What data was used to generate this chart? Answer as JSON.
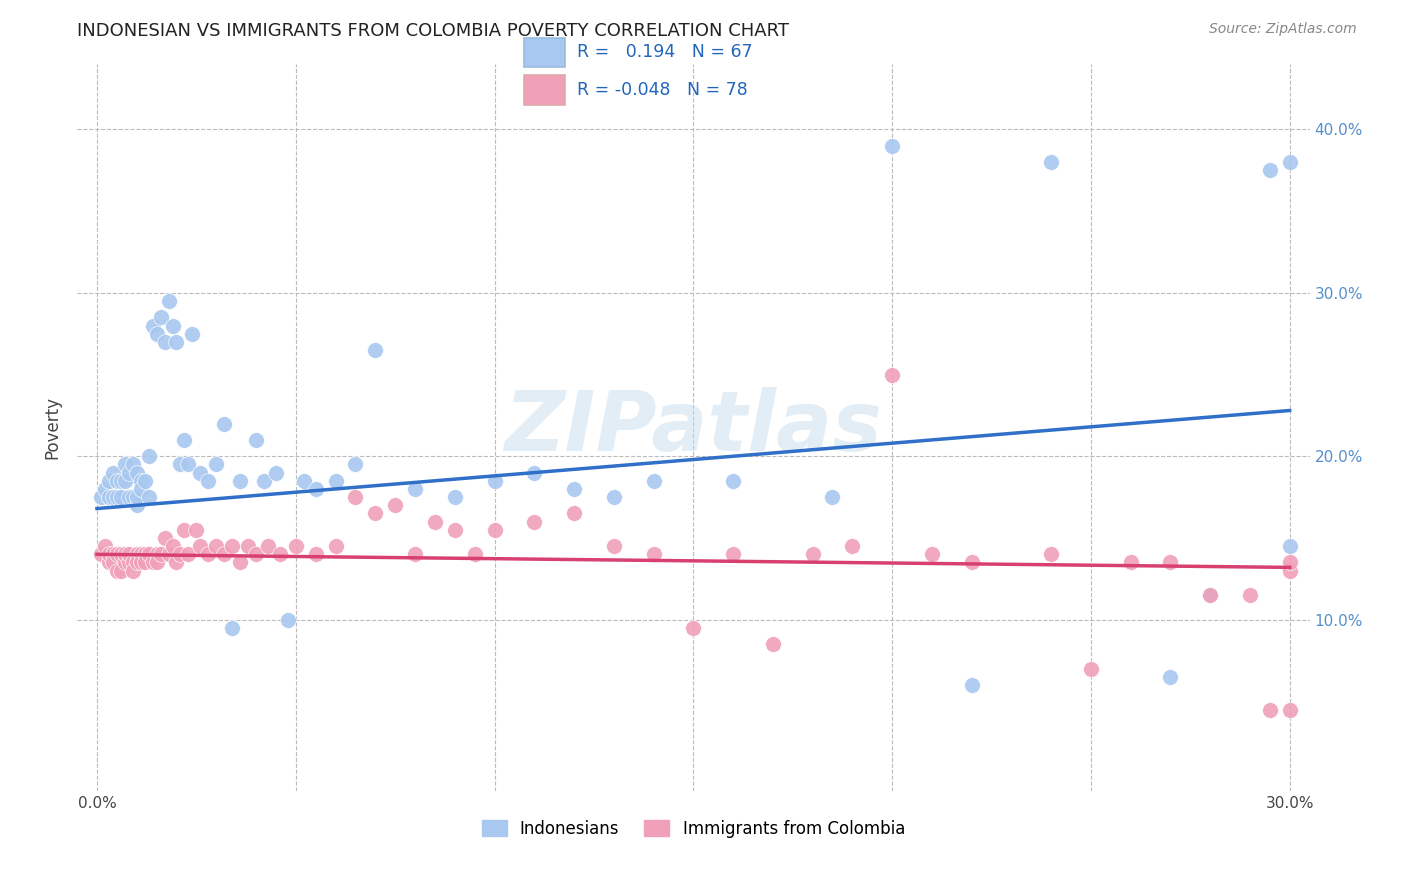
{
  "title": "INDONESIAN VS IMMIGRANTS FROM COLOMBIA POVERTY CORRELATION CHART",
  "source": "Source: ZipAtlas.com",
  "ylabel": "Poverty",
  "xlim": [
    -0.005,
    0.305
  ],
  "ylim": [
    -0.005,
    0.44
  ],
  "xtick_positions": [
    0.0,
    0.05,
    0.1,
    0.15,
    0.2,
    0.25,
    0.3
  ],
  "ytick_positions": [
    0.1,
    0.2,
    0.3,
    0.4
  ],
  "xticklabels": [
    "0.0%",
    "",
    "",
    "",
    "",
    "",
    "30.0%"
  ],
  "yticklabels": [
    "10.0%",
    "20.0%",
    "30.0%",
    "40.0%"
  ],
  "legend_labels": [
    "Indonesians",
    "Immigrants from Colombia"
  ],
  "blue_R": "0.194",
  "blue_N": "67",
  "pink_R": "-0.048",
  "pink_N": "78",
  "blue_color": "#A8C8F0",
  "pink_color": "#F0A0B8",
  "blue_line_color": "#3070C8",
  "pink_line_color": "#D84070",
  "watermark": "ZIPatlas",
  "background_color": "#FFFFFF",
  "blue_trend_x": [
    0.0,
    0.3
  ],
  "blue_trend_y": [
    0.168,
    0.228
  ],
  "pink_trend_x": [
    0.0,
    0.3
  ],
  "pink_trend_y": [
    0.14,
    0.132
  ],
  "blue_x": [
    0.001,
    0.002,
    0.003,
    0.003,
    0.004,
    0.004,
    0.005,
    0.005,
    0.006,
    0.006,
    0.007,
    0.007,
    0.008,
    0.008,
    0.009,
    0.009,
    0.01,
    0.01,
    0.01,
    0.011,
    0.011,
    0.012,
    0.013,
    0.013,
    0.014,
    0.015,
    0.016,
    0.017,
    0.018,
    0.019,
    0.02,
    0.021,
    0.022,
    0.023,
    0.024,
    0.026,
    0.028,
    0.03,
    0.032,
    0.034,
    0.036,
    0.04,
    0.042,
    0.045,
    0.048,
    0.052,
    0.055,
    0.06,
    0.065,
    0.07,
    0.08,
    0.09,
    0.1,
    0.11,
    0.12,
    0.13,
    0.14,
    0.16,
    0.185,
    0.2,
    0.22,
    0.24,
    0.27,
    0.28,
    0.295,
    0.3,
    0.3
  ],
  "blue_y": [
    0.175,
    0.18,
    0.185,
    0.175,
    0.19,
    0.175,
    0.185,
    0.175,
    0.185,
    0.175,
    0.195,
    0.185,
    0.175,
    0.19,
    0.175,
    0.195,
    0.17,
    0.175,
    0.19,
    0.185,
    0.18,
    0.185,
    0.175,
    0.2,
    0.28,
    0.275,
    0.285,
    0.27,
    0.295,
    0.28,
    0.27,
    0.195,
    0.21,
    0.195,
    0.275,
    0.19,
    0.185,
    0.195,
    0.22,
    0.095,
    0.185,
    0.21,
    0.185,
    0.19,
    0.1,
    0.185,
    0.18,
    0.185,
    0.195,
    0.265,
    0.18,
    0.175,
    0.185,
    0.19,
    0.18,
    0.175,
    0.185,
    0.185,
    0.175,
    0.39,
    0.06,
    0.38,
    0.065,
    0.115,
    0.375,
    0.38,
    0.145
  ],
  "pink_x": [
    0.001,
    0.002,
    0.003,
    0.003,
    0.004,
    0.004,
    0.005,
    0.005,
    0.006,
    0.006,
    0.007,
    0.007,
    0.008,
    0.008,
    0.009,
    0.009,
    0.01,
    0.01,
    0.011,
    0.011,
    0.012,
    0.012,
    0.013,
    0.014,
    0.015,
    0.015,
    0.016,
    0.017,
    0.018,
    0.019,
    0.02,
    0.021,
    0.022,
    0.023,
    0.025,
    0.026,
    0.028,
    0.03,
    0.032,
    0.034,
    0.036,
    0.038,
    0.04,
    0.043,
    0.046,
    0.05,
    0.055,
    0.06,
    0.065,
    0.07,
    0.075,
    0.08,
    0.085,
    0.09,
    0.095,
    0.1,
    0.11,
    0.12,
    0.13,
    0.14,
    0.15,
    0.16,
    0.17,
    0.18,
    0.19,
    0.2,
    0.21,
    0.22,
    0.24,
    0.25,
    0.26,
    0.27,
    0.28,
    0.29,
    0.295,
    0.3,
    0.3,
    0.3
  ],
  "pink_y": [
    0.14,
    0.145,
    0.135,
    0.14,
    0.14,
    0.135,
    0.14,
    0.13,
    0.14,
    0.13,
    0.135,
    0.14,
    0.135,
    0.14,
    0.135,
    0.13,
    0.14,
    0.135,
    0.14,
    0.135,
    0.14,
    0.135,
    0.14,
    0.135,
    0.14,
    0.135,
    0.14,
    0.15,
    0.14,
    0.145,
    0.135,
    0.14,
    0.155,
    0.14,
    0.155,
    0.145,
    0.14,
    0.145,
    0.14,
    0.145,
    0.135,
    0.145,
    0.14,
    0.145,
    0.14,
    0.145,
    0.14,
    0.145,
    0.175,
    0.165,
    0.17,
    0.14,
    0.16,
    0.155,
    0.14,
    0.155,
    0.16,
    0.165,
    0.145,
    0.14,
    0.095,
    0.14,
    0.085,
    0.14,
    0.145,
    0.25,
    0.14,
    0.135,
    0.14,
    0.07,
    0.135,
    0.135,
    0.115,
    0.115,
    0.045,
    0.045,
    0.13,
    0.135
  ]
}
